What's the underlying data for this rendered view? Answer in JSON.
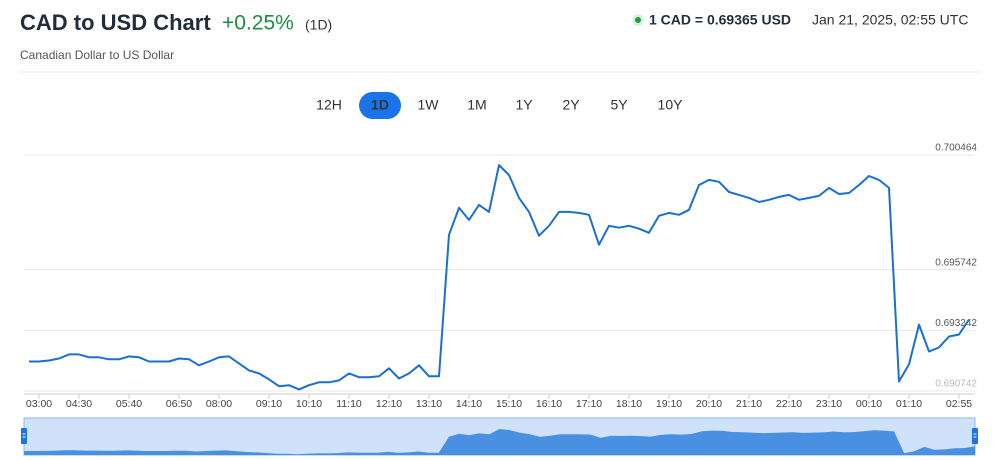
{
  "header": {
    "title": "CAD to USD Chart",
    "change": "+0.25%",
    "period": "(1D)",
    "quote": "1 CAD = 0.69365 USD",
    "timestamp": "Jan 21, 2025, 02:55 UTC",
    "subtitle": "Canadian Dollar to US Dollar"
  },
  "ranges": [
    "12H",
    "1D",
    "1W",
    "1M",
    "1Y",
    "2Y",
    "5Y",
    "10Y"
  ],
  "chart_data": {
    "type": "line",
    "color": "#1a6fd1",
    "grid": true,
    "ylim": [
      0.6905,
      0.7011
    ],
    "yticks": [
      0.690742,
      0.693242,
      0.695742,
      0.700464
    ],
    "categories": [
      null,
      "03:00",
      null,
      null,
      null,
      "04:30",
      null,
      null,
      null,
      null,
      "05:40",
      null,
      null,
      null,
      null,
      "06:50",
      null,
      null,
      null,
      "08:00",
      null,
      null,
      null,
      null,
      "09:10",
      null,
      null,
      null,
      "10:10",
      null,
      null,
      null,
      "11:10",
      null,
      null,
      null,
      "12:10",
      null,
      null,
      null,
      "13:10",
      null,
      null,
      null,
      "14:10",
      null,
      null,
      null,
      "15:10",
      null,
      null,
      null,
      "16:10",
      null,
      null,
      null,
      "17:10",
      null,
      null,
      null,
      "18:10",
      null,
      null,
      null,
      "19:10",
      null,
      null,
      null,
      "20:10",
      null,
      null,
      null,
      "21:10",
      null,
      null,
      null,
      "22:10",
      null,
      null,
      null,
      "23:10",
      null,
      null,
      null,
      "00:10",
      null,
      null,
      null,
      "01:10",
      null,
      null,
      null,
      null,
      "02:55",
      null
    ],
    "values": [
      0.69196,
      0.69196,
      0.692,
      0.69208,
      0.69225,
      0.69225,
      0.69213,
      0.69213,
      0.69205,
      0.69205,
      0.69217,
      0.69213,
      0.69196,
      0.69196,
      0.69196,
      0.69208,
      0.69205,
      0.6918,
      0.69196,
      0.69213,
      0.69217,
      0.69188,
      0.69159,
      0.69147,
      0.69122,
      0.69094,
      0.69098,
      0.69081,
      0.69098,
      0.6911,
      0.6911,
      0.69118,
      0.69147,
      0.69131,
      0.69131,
      0.69135,
      0.69168,
      0.69126,
      0.69147,
      0.6918,
      0.69135,
      0.69135,
      0.69718,
      0.69829,
      0.69779,
      0.69841,
      0.69812,
      0.70005,
      0.69964,
      0.6987,
      0.69812,
      0.69714,
      0.69755,
      0.69812,
      0.69812,
      0.69808,
      0.698,
      0.69677,
      0.69755,
      0.69747,
      0.69755,
      0.69743,
      0.69726,
      0.69796,
      0.69808,
      0.698,
      0.69821,
      0.69923,
      0.69944,
      0.69936,
      0.69894,
      0.69882,
      0.6987,
      0.69853,
      0.69862,
      0.69874,
      0.69882,
      0.69862,
      0.6987,
      0.69878,
      0.69911,
      0.69886,
      0.6989,
      0.69923,
      0.6996,
      0.69944,
      0.69911,
      0.69114,
      0.69184,
      0.69348,
      0.69237,
      0.69254,
      0.69299,
      0.69307,
      0.69369
    ]
  }
}
